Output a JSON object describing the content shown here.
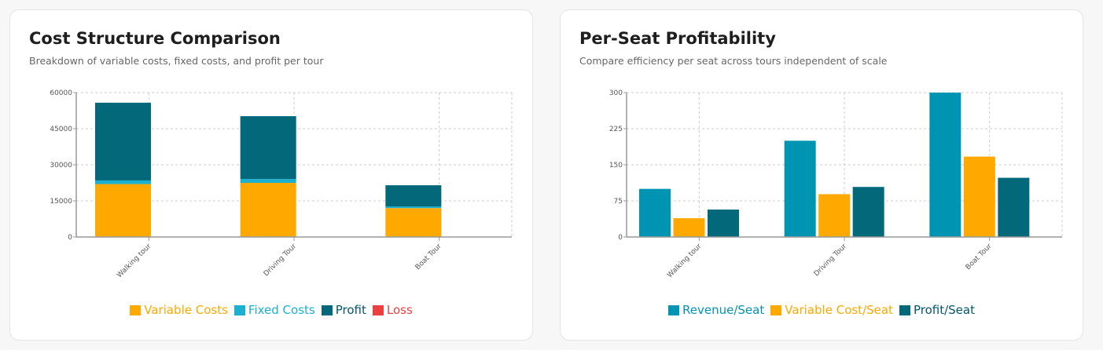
{
  "cards": [
    {
      "title": "Cost Structure Comparison",
      "subtitle": "Breakdown of variable costs, fixed costs, and profit per tour"
    },
    {
      "title": "Per-Seat Profitability",
      "subtitle": "Compare efficiency per seat across tours independent of scale"
    }
  ],
  "chart_data": [
    {
      "type": "bar",
      "stacked": true,
      "categories": [
        "Walking tour",
        "Driving Tour",
        "Boat Tour"
      ],
      "series": [
        {
          "name": "Variable Costs",
          "color": "#ffa800",
          "values": [
            22000,
            22500,
            12000
          ]
        },
        {
          "name": "Fixed Costs",
          "color": "#1bb0cf",
          "values": [
            1500,
            1600,
            700
          ]
        },
        {
          "name": "Profit",
          "color": "#03687a",
          "values": [
            32300,
            26100,
            8800
          ]
        },
        {
          "name": "Loss",
          "color": "#eb4040",
          "values": [
            0,
            0,
            0
          ]
        }
      ],
      "ylim": [
        0,
        60000
      ],
      "yticks": [
        "0",
        "15000",
        "30000",
        "45000",
        "60000"
      ],
      "grid": true,
      "legend": "bottom"
    },
    {
      "type": "bar",
      "stacked": false,
      "categories": [
        "Walking tour",
        "Driving Tour",
        "Boat Tour"
      ],
      "series": [
        {
          "name": "Revenue/Seat",
          "color": "#0094b3",
          "values": [
            100,
            200,
            300
          ]
        },
        {
          "name": "Variable Cost/Seat",
          "color": "#ffa800",
          "values": [
            39,
            89,
            167
          ]
        },
        {
          "name": "Profit/Seat",
          "color": "#03687a",
          "values": [
            57,
            104,
            123
          ]
        }
      ],
      "ylim": [
        0,
        300
      ],
      "yticks": [
        "0",
        "75",
        "150",
        "225",
        "300"
      ],
      "grid": true,
      "legend": "bottom"
    }
  ]
}
